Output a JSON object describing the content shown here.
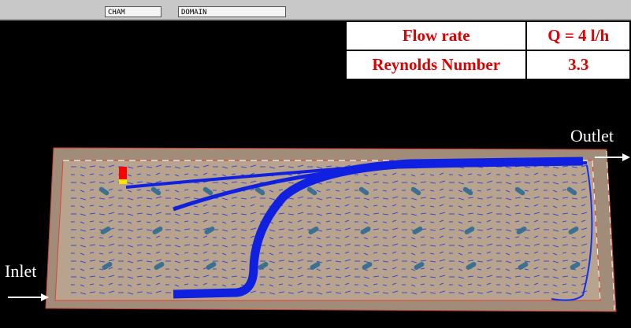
{
  "toolbar": {
    "fields": [
      "CHAM",
      "DOMAIN"
    ]
  },
  "table": {
    "rows": [
      [
        "Flow rate",
        "Q = 4 l/h"
      ],
      [
        "Reynolds Number",
        "3.3"
      ]
    ]
  },
  "labels": {
    "outlet": "Outlet",
    "inlet": "Inlet"
  }
}
